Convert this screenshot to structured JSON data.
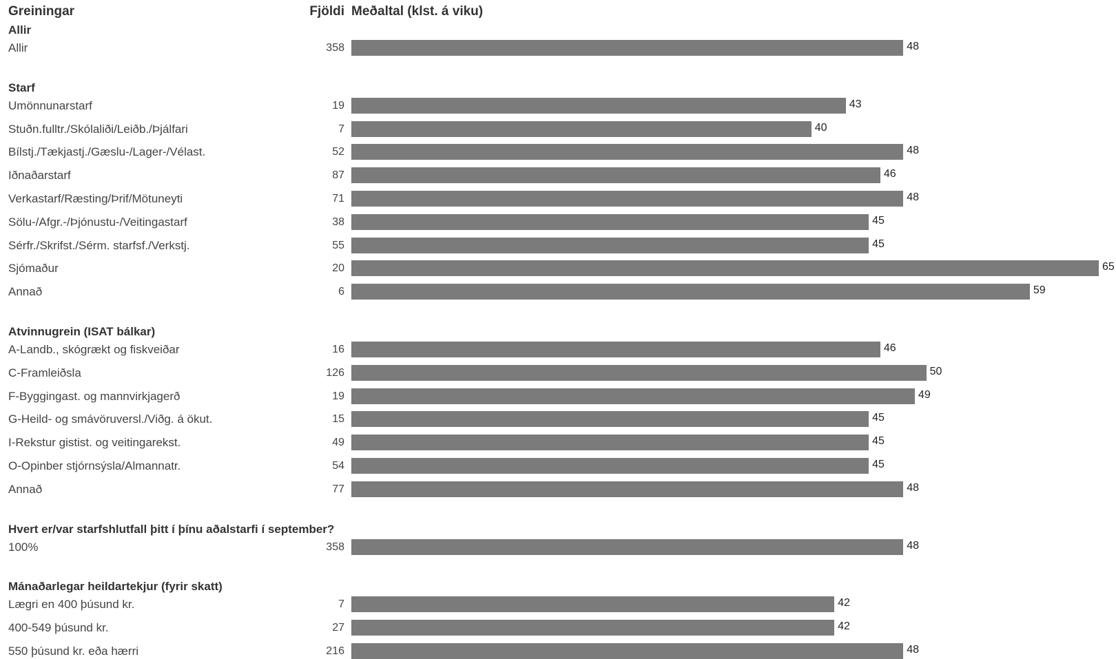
{
  "header": {
    "label_col": "Greiningar",
    "count_col": "Fjöldi",
    "value_col": "Meðaltal (klst. á viku)"
  },
  "chart_data": {
    "type": "bar",
    "orientation": "horizontal",
    "value_axis_max": 65,
    "groups": [
      {
        "title": "Allir",
        "rows": [
          {
            "label": "Allir",
            "count": 358,
            "value": 48
          }
        ]
      },
      {
        "title": "Starf",
        "rows": [
          {
            "label": "Umönnunarstarf",
            "count": 19,
            "value": 43
          },
          {
            "label": "Stuðn.fulltr./Skólaliði/Leiðb./Þjálfari",
            "count": 7,
            "value": 40
          },
          {
            "label": "Bílstj./Tækjastj./Gæslu-/Lager-/Vélast.",
            "count": 52,
            "value": 48
          },
          {
            "label": "Iðnaðarstarf",
            "count": 87,
            "value": 46
          },
          {
            "label": "Verkastarf/Ræsting/Þrif/Mötuneyti",
            "count": 71,
            "value": 48
          },
          {
            "label": "Sölu-/Afgr.-/Þjónustu-/Veitingastarf",
            "count": 38,
            "value": 45
          },
          {
            "label": "Sérfr./Skrifst./Sérm. starfsf./Verkstj.",
            "count": 55,
            "value": 45
          },
          {
            "label": "Sjómaður",
            "count": 20,
            "value": 65
          },
          {
            "label": "Annað",
            "count": 6,
            "value": 59
          }
        ]
      },
      {
        "title": "Atvinnugrein (ISAT bálkar)",
        "rows": [
          {
            "label": "A-Landb., skógrækt og fiskveiðar",
            "count": 16,
            "value": 46
          },
          {
            "label": "C-Framleiðsla",
            "count": 126,
            "value": 50
          },
          {
            "label": "F-Byggingast. og mannvirkjagerð",
            "count": 19,
            "value": 49
          },
          {
            "label": "G-Heild- og smávöruversl./Viðg. á ökut.",
            "count": 15,
            "value": 45
          },
          {
            "label": "I-Rekstur gistist. og veitingarekst.",
            "count": 49,
            "value": 45
          },
          {
            "label": "O-Opinber stjórnsýsla/Almannatr.",
            "count": 54,
            "value": 45
          },
          {
            "label": "Annað",
            "count": 77,
            "value": 48
          }
        ]
      },
      {
        "title": "Hvert er/var starfshlutfall þitt í þínu aðalstarfi í september?",
        "rows": [
          {
            "label": "100%",
            "count": 358,
            "value": 48
          }
        ]
      },
      {
        "title": "Mánaðarlegar heildartekjur (fyrir skatt)",
        "rows": [
          {
            "label": "Lægri en 400 þúsund kr.",
            "count": 7,
            "value": 42
          },
          {
            "label": "400-549 þúsund kr.",
            "count": 27,
            "value": 42
          },
          {
            "label": "550 þúsund kr. eða hærri",
            "count": 216,
            "value": 48
          }
        ]
      }
    ]
  },
  "colors": {
    "bar": "#7b7b7b"
  }
}
